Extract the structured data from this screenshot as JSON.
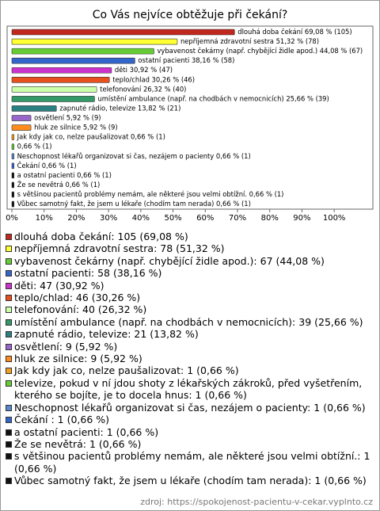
{
  "chart_data": {
    "type": "bar",
    "orientation": "horizontal",
    "title": "Co Vás nejvíce obtěžuje při čekání?",
    "values": [
      69.08,
      51.32,
      44.08,
      38.16,
      30.92,
      30.26,
      26.32,
      25.66,
      13.82,
      5.92,
      5.92,
      0.66,
      0.66,
      0.66,
      0.66,
      0.66,
      0.66,
      0.66,
      0.66
    ],
    "value_labels": [
      "dlouhá doba čekání 69,08 % (105)",
      "nepříjemná zdravotní sestra 51,32 % (78)",
      "vybavenost čekárny (např. chybějící židle apod.) 44,08 % (67)",
      "ostatní pacienti 38,16 % (58)",
      "děti 30,92 % (47)",
      "teplo/chlad 30,26 % (46)",
      "telefonování 26,32 % (40)",
      "umístění ambulance (např. na chodbách v nemocnicích) 25,66 % (39)",
      "zapnuté rádio, televize 13,82 % (21)",
      "osvětlení 5,92 % (9)",
      "hluk ze silnice 5,92 % (9)",
      "Jak kdy jak co, nelze paušalizovat 0,66 % (1)",
      "0,66 % (1)",
      "Neschopnost lékařů organizovat si čas, nezájem o pacienty 0,66 % (1)",
      "Čekání  0,66 % (1)",
      "a ostatní pacienti 0,66 % (1)",
      "Že se nevětrá 0,66 % (1)",
      "s většinou pacientů problémy nemám, ale některé jsou velmi obtížní. 0,66 % (1)",
      "Vůbec samotný fakt, že jsem u lékaře (chodím tam nerada) 0,66 % (1)"
    ],
    "legend": [
      "dlouhá doba čekání: 105 (69,08 %)",
      "nepříjemná zdravotní sestra: 78 (51,32 %)",
      "vybavenost čekárny (např. chybějící židle apod.): 67 (44,08 %)",
      "ostatní pacienti: 58 (38,16 %)",
      "děti: 47 (30,92 %)",
      "teplo/chlad: 46 (30,26 %)",
      "telefonování: 40 (26,32 %)",
      "umístění ambulance (např. na chodbách v nemocnicích): 39 (25,66 %)",
      "zapnuté rádio, televize: 21 (13,82 %)",
      "osvětlení: 9 (5,92 %)",
      "hluk ze silnice: 9 (5,92 %)",
      "Jak kdy jak co, nelze paušalizovat: 1 (0,66 %)",
      "televize, pokud v ní jdou shoty z lékařských zákroků, před vyšetřením, kterého se bojíte, je to docela hnus: 1 (0,66 %)",
      "Neschopnost lékařů organizovat si čas, nezájem o pacienty: 1 (0,66 %)",
      "Čekání : 1 (0,66 %)",
      "a ostatní pacienti: 1 (0,66 %)",
      "Že se nevětrá: 1 (0,66 %)",
      "s většinou pacientů problémy nemám, ale některé jsou velmi obtížní.: 1 (0,66 %)",
      "Vůbec samotný fakt, že jsem u lékaře (chodím tam nerada): 1 (0,66 %)"
    ],
    "colors": [
      "#c0281e",
      "#ffff33",
      "#66cc33",
      "#3366cc",
      "#cc33cc",
      "#e8501e",
      "#ccffaa",
      "#339966",
      "#2a8080",
      "#9966cc",
      "#ff8c1a",
      "#f0a020",
      "#66cc33",
      "#5588cc",
      "#3366cc",
      "#111111",
      "#111111",
      "#111111",
      "#111111"
    ],
    "xlim": [
      0,
      112
    ],
    "xticks": [
      {
        "value": 0,
        "label": "0%"
      },
      {
        "value": 10,
        "label": "10%"
      },
      {
        "value": 20,
        "label": "20%"
      },
      {
        "value": 30,
        "label": "30%"
      },
      {
        "value": 40,
        "label": "40%"
      },
      {
        "value": 50,
        "label": "50%"
      },
      {
        "value": 60,
        "label": "60%"
      },
      {
        "value": 70,
        "label": "70%"
      },
      {
        "value": 80,
        "label": "80%"
      },
      {
        "value": 90,
        "label": "90%"
      },
      {
        "value": 100,
        "label": "100%"
      }
    ],
    "grid": false,
    "source": "zdroj: https://spokojenost-pacientu-v-cekar.vyplnto.cz"
  }
}
